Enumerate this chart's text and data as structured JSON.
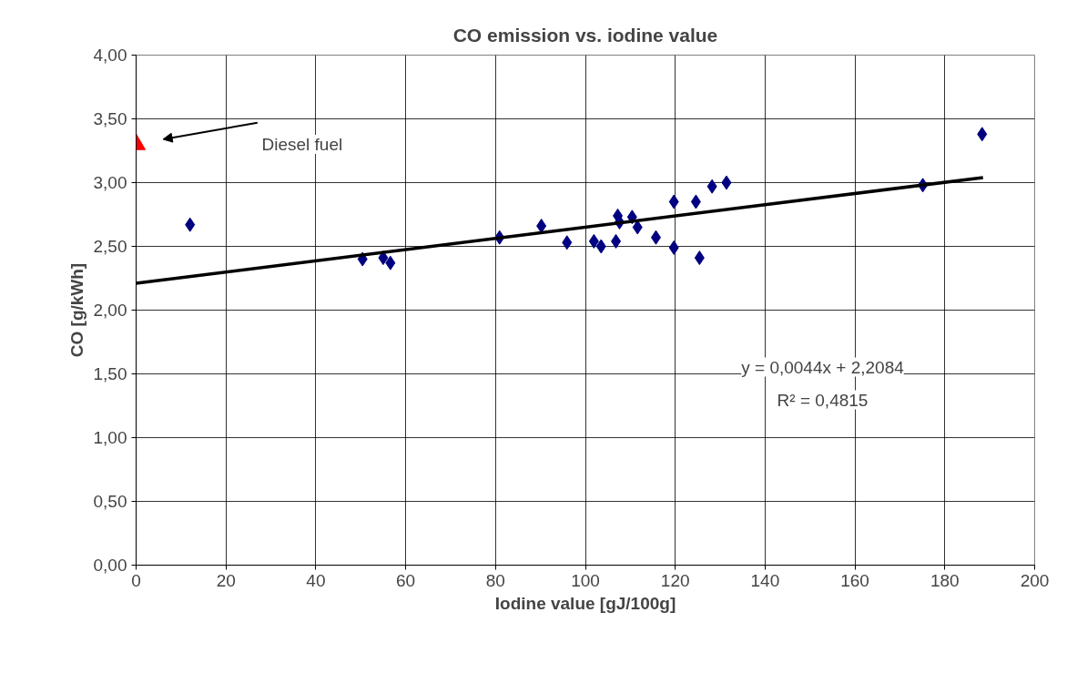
{
  "chart_data": {
    "type": "scatter",
    "title": "CO emission vs. iodine value",
    "xlabel": "Iodine value [gJ/100g]",
    "ylabel": "CO [g/kWh]",
    "xlim": [
      0,
      200
    ],
    "xticks": [
      0,
      20,
      40,
      60,
      80,
      100,
      120,
      140,
      160,
      180,
      200
    ],
    "ylim": [
      0,
      4
    ],
    "yticks": [
      {
        "value": 0,
        "label": "0,00"
      },
      {
        "value": 0.5,
        "label": "0,50"
      },
      {
        "value": 1,
        "label": "1,00"
      },
      {
        "value": 1.5,
        "label": "1,50"
      },
      {
        "value": 2,
        "label": "2,00"
      },
      {
        "value": 2.5,
        "label": "2,50"
      },
      {
        "value": 3,
        "label": "3,00"
      },
      {
        "value": 3.5,
        "label": "3,50"
      },
      {
        "value": 4,
        "label": "4,00"
      }
    ],
    "grid": true,
    "series": [
      {
        "marker": "diamond",
        "color": "#000080",
        "x": [
          12,
          50.4,
          55,
          56.6,
          80.9,
          90.2,
          95.9,
          101.9,
          103.5,
          106.8,
          107.2,
          107.6,
          110.4,
          111.6,
          115.7,
          119.7,
          119.7,
          124.6,
          125.4,
          128.2,
          131.4,
          175.1,
          188.3
        ],
        "values": [
          2.67,
          2.4,
          2.41,
          2.37,
          2.57,
          2.66,
          2.53,
          2.54,
          2.5,
          2.54,
          2.74,
          2.69,
          2.73,
          2.65,
          2.57,
          2.85,
          2.49,
          2.85,
          2.41,
          2.97,
          3.0,
          2.98,
          3.38
        ]
      },
      {
        "marker": "triangle",
        "color": "#ff0000",
        "x": [
          0
        ],
        "values": [
          3.3
        ]
      },
      {
        "type": "line",
        "color": "#000000",
        "x": [
          0,
          188.5
        ],
        "values": [
          2.21,
          3.04
        ]
      }
    ],
    "annotations": [
      "Diesel fuel",
      "y = 0,0044x + 2,2084",
      "R² = 0,4815"
    ]
  }
}
